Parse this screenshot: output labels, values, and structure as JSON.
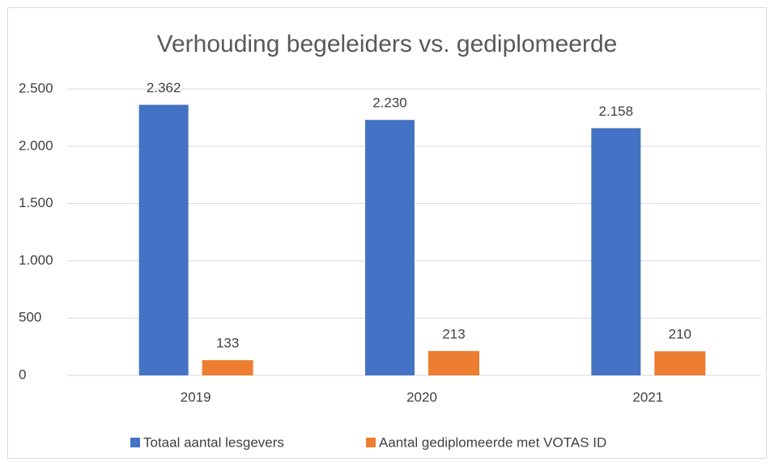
{
  "chart_data": {
    "type": "bar",
    "title": "Verhouding begeleiders vs. gediplomeerde",
    "categories": [
      "2019",
      "2020",
      "2021"
    ],
    "series": [
      {
        "name": "Totaal aantal lesgevers",
        "color": "#4472c4",
        "values": [
          2362,
          2230,
          2158
        ],
        "value_labels": [
          "2.362",
          "2.230",
          "2.158"
        ]
      },
      {
        "name": "Aantal gediplomeerde met VOTAS ID",
        "color": "#ed7d31",
        "values": [
          133,
          213,
          210
        ]
      }
    ],
    "ylim": [
      0,
      2500
    ],
    "yticks": [
      0,
      500,
      {
        "value": 1000,
        "label": "1.000"
      },
      {
        "value": 1500,
        "label": "1.500"
      },
      {
        "value": 2000,
        "label": "2.000"
      },
      {
        "value": 2500,
        "label": "2.500"
      }
    ],
    "grid": true,
    "legend": "bottom"
  }
}
